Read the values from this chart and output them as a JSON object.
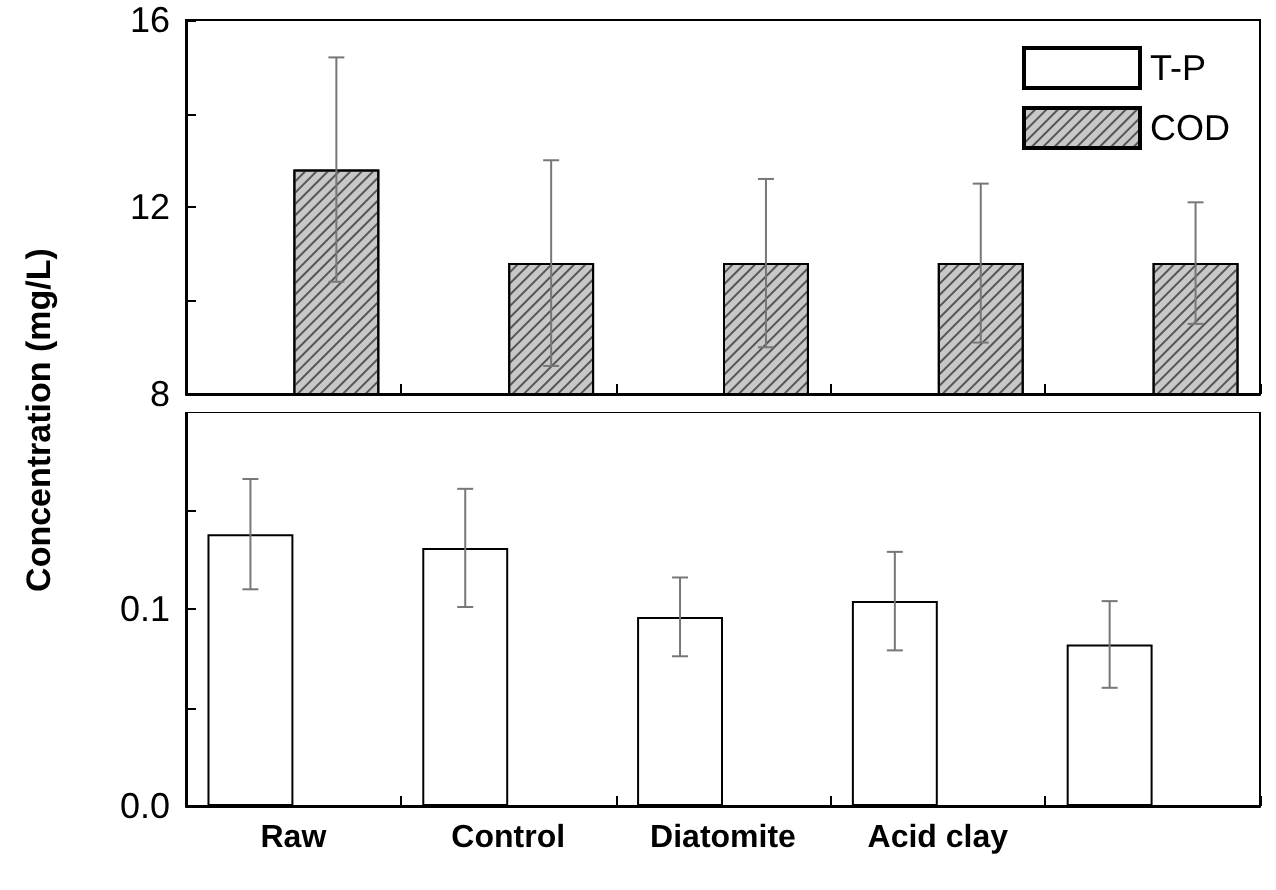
{
  "chart_data": [
    {
      "type": "bar",
      "ylabel": "Concentration (mg/L)",
      "categories": [
        null,
        null,
        null,
        null,
        null
      ],
      "series": [
        {
          "name": "T-P",
          "color": "#ffffff",
          "values": [
            null,
            null,
            null,
            null,
            null
          ]
        },
        {
          "name": "COD",
          "color": "#c8c8c8",
          "values": [
            12.8,
            10.8,
            10.8,
            10.8,
            10.8
          ],
          "errors": [
            2.4,
            2.2,
            1.8,
            1.7,
            1.3
          ]
        }
      ],
      "ylim": [
        8,
        16
      ],
      "yticks": [
        8,
        {
          "value": 10,
          "label": null
        },
        12,
        {
          "value": 14,
          "label": null
        },
        16
      ],
      "tick_labels": "y",
      "legend": "top right",
      "grid": false
    },
    {
      "type": "bar",
      "categories": [
        "Raw",
        "Control",
        "Diatomite",
        "Acid clay",
        null
      ],
      "series": [
        {
          "color": "#ffffff",
          "values": [
            0.138,
            0.131,
            0.096,
            0.104,
            0.082
          ],
          "errors": [
            0.028,
            0.03,
            0.02,
            0.025,
            0.022
          ]
        },
        {
          "color": "#c8c8c8",
          "values": [
            null,
            null,
            null,
            null,
            null
          ]
        }
      ],
      "ylim": [
        0,
        0.2
      ],
      "yticks": [
        {
          "value": 0,
          "label": "0.0"
        },
        {
          "value": 0.05,
          "label": null
        },
        {
          "value": 0.1,
          "label": "0.1"
        },
        {
          "value": 0.15,
          "label": null
        }
      ],
      "grid": false
    }
  ]
}
